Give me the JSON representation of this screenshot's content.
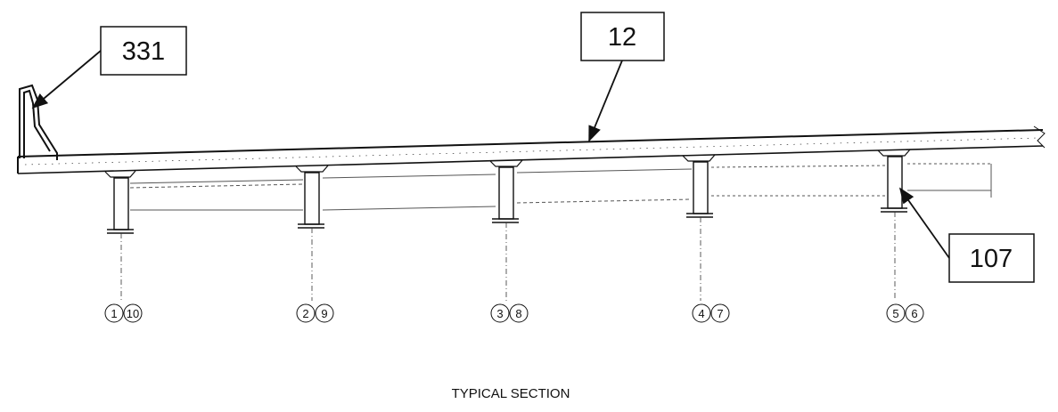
{
  "callouts": {
    "barrier": "331",
    "deck": "12",
    "girder": "107"
  },
  "girder_lines": [
    {
      "left": "1",
      "right": "10"
    },
    {
      "left": "2",
      "right": "9"
    },
    {
      "left": "3",
      "right": "8"
    },
    {
      "left": "4",
      "right": "7"
    },
    {
      "left": "5",
      "right": "6"
    }
  ],
  "title": "TYPICAL SECTION"
}
